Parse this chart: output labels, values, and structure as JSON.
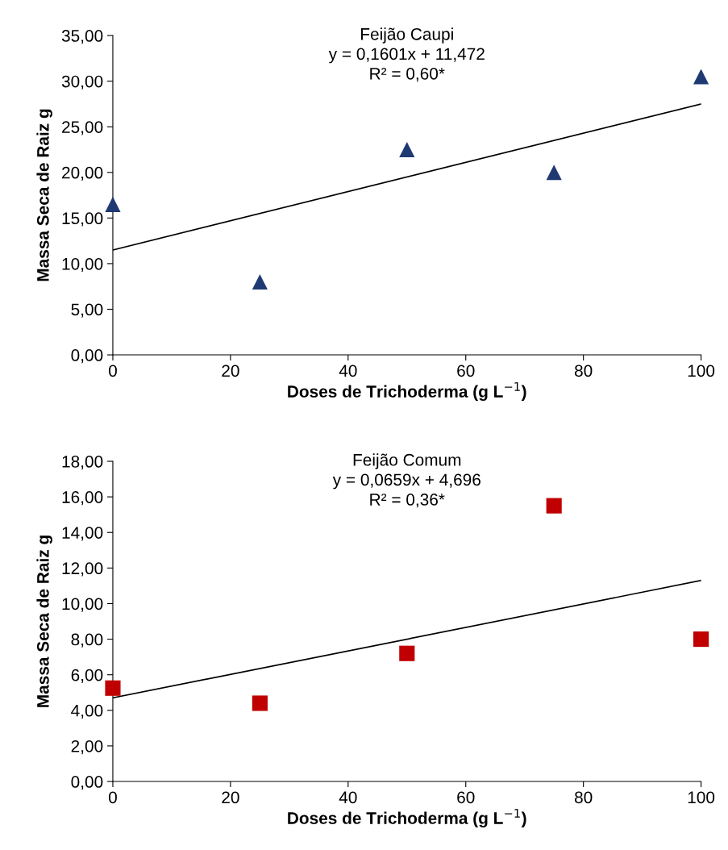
{
  "chart_data": [
    {
      "type": "scatter",
      "title": "Feijão Caupi",
      "xlabel": "Doses de Trichoderma (g L$^{−1}$)",
      "ylabel": "Massa Seca de Raiz g",
      "annotations": [
        "y = 0,1601x + 11,472",
        "R² = 0,60*"
      ],
      "xlim": [
        0,
        100
      ],
      "xticks": [
        0,
        20,
        40,
        60,
        80,
        100
      ],
      "ylim": [
        0,
        35
      ],
      "yticks": [
        {
          "value": 0,
          "label": "0,00"
        },
        {
          "value": 5,
          "label": "5,00"
        },
        {
          "value": 10,
          "label": "10,00"
        },
        {
          "value": 15,
          "label": "15,00"
        },
        {
          "value": 20,
          "label": "20,00"
        },
        {
          "value": 25,
          "label": "25,00"
        },
        {
          "value": 30,
          "label": "30,00"
        },
        {
          "value": 35,
          "label": "35,00"
        }
      ],
      "series": [
        {
          "marker": "triangle",
          "color": "#1f3a73",
          "x": [
            0,
            25,
            50,
            75,
            100
          ],
          "values": [
            16.5,
            8.0,
            22.5,
            20.0,
            30.5
          ]
        },
        {
          "type": "line",
          "color": "#000000",
          "x": [
            0,
            100
          ],
          "values": [
            11.5,
            27.5
          ]
        }
      ]
    },
    {
      "type": "scatter",
      "title": "Feijão Comum",
      "xlabel": "Doses de Trichoderma (g L$^{−1}$)",
      "ylabel": "Massa Seca de Raiz g",
      "annotations": [
        "y = 0,0659x + 4,696",
        "R² = 0,36*"
      ],
      "xlim": [
        0,
        100
      ],
      "xticks": [
        0,
        20,
        40,
        60,
        80,
        100
      ],
      "ylim": [
        0,
        18
      ],
      "yticks": [
        {
          "value": 0,
          "label": "0,00"
        },
        {
          "value": 2,
          "label": "2,00"
        },
        {
          "value": 4,
          "label": "4,00"
        },
        {
          "value": 6,
          "label": "6,00"
        },
        {
          "value": 8,
          "label": "8,00"
        },
        {
          "value": 10,
          "label": "10,00"
        },
        {
          "value": 12,
          "label": "12,00"
        },
        {
          "value": 14,
          "label": "14,00"
        },
        {
          "value": 16,
          "label": "16,00"
        },
        {
          "value": 18,
          "label": "18,00"
        }
      ],
      "series": [
        {
          "marker": "square",
          "color": "#c00000",
          "x": [
            0,
            25,
            50,
            75,
            100
          ],
          "values": [
            5.25,
            4.4,
            7.2,
            15.5,
            8.0
          ]
        },
        {
          "type": "line",
          "color": "#000000",
          "x": [
            0,
            100
          ],
          "values": [
            4.7,
            11.3
          ]
        }
      ]
    }
  ]
}
